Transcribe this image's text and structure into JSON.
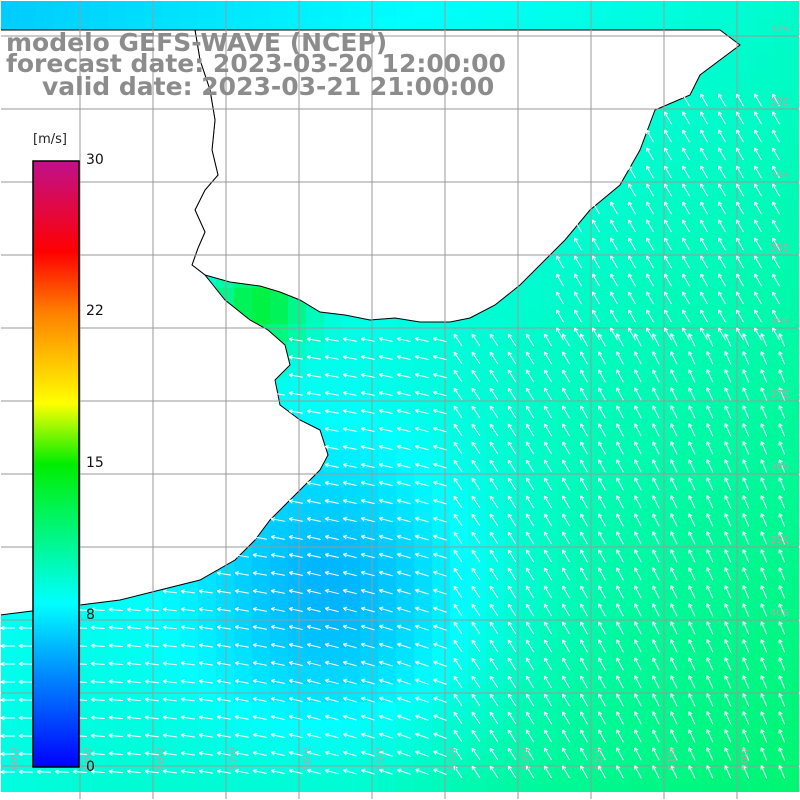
{
  "title": {
    "line1": "modelo GEFS-WAVE (NCEP)",
    "line2": "forecast date: 2023-03-20 12:00:00",
    "line3": "valid date: 2023-03-21 21:00:00"
  },
  "colorbar": {
    "unit": "[m/s]",
    "ticks": [
      "30",
      "22",
      "15",
      "8",
      "0"
    ],
    "tick_values": [
      30,
      22,
      15,
      8,
      0
    ],
    "min": 0,
    "max": 30,
    "colors": [
      "#0000ff",
      "#00aaff",
      "#00ffff",
      "#00ff00",
      "#ffff00",
      "#ff8000",
      "#ff0000",
      "#cc0088"
    ]
  },
  "map": {
    "variable": "wind speed and direction",
    "land_color": "#ffffff",
    "grid_color": "#999999",
    "coastline_color": "#000000",
    "right_edge_latitude_labels": [
      "32S",
      "33S",
      "34S",
      "35S",
      "36S",
      "37S",
      "38S",
      "39S",
      "40S"
    ],
    "bottom_longitude_labels": [
      "60W",
      "59W",
      "58W",
      "57W",
      "56W",
      "55W",
      "54W",
      "53W",
      "52W",
      "51W",
      "50W"
    ],
    "wind_pattern": "southerly/southeasterly flow offshore turning westward along the coast; weakest near the coast off Buenos Aires, strongest (green) in the southeast"
  }
}
